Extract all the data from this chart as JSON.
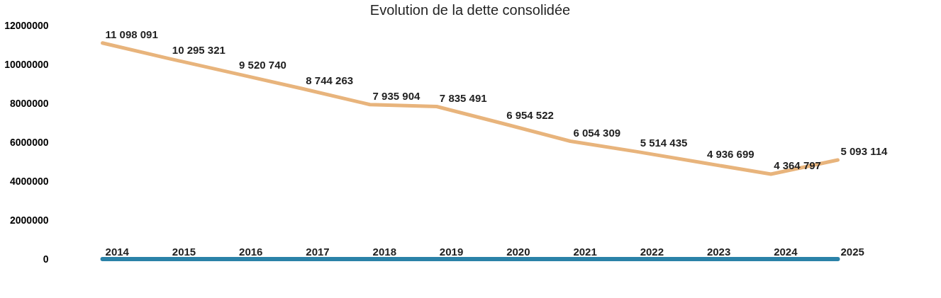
{
  "chart_data": {
    "type": "line",
    "title": "Evolution de la dette consolidée",
    "categories": [
      null,
      null,
      null,
      null,
      null,
      null,
      null,
      null,
      null,
      null,
      null,
      null
    ],
    "series": [
      {
        "color": "#e8b47c",
        "values": [
          11098091,
          10295321,
          9520740,
          8744263,
          7935904,
          7835491,
          6954522,
          6054309,
          5514435,
          4936699,
          4364797,
          5093114
        ]
      },
      {
        "color": "#2b82a8",
        "values": [
          2014,
          2015,
          2016,
          2017,
          2018,
          2019,
          2020,
          2021,
          2022,
          2023,
          2024,
          2025
        ]
      }
    ],
    "ylim": [
      0,
      12000000
    ],
    "yticks": [
      0,
      2000000,
      4000000,
      6000000,
      8000000,
      10000000,
      12000000
    ],
    "data_labels": true,
    "grid": false,
    "marker": "none",
    "line_style": "solid",
    "tick_labels": "y"
  }
}
